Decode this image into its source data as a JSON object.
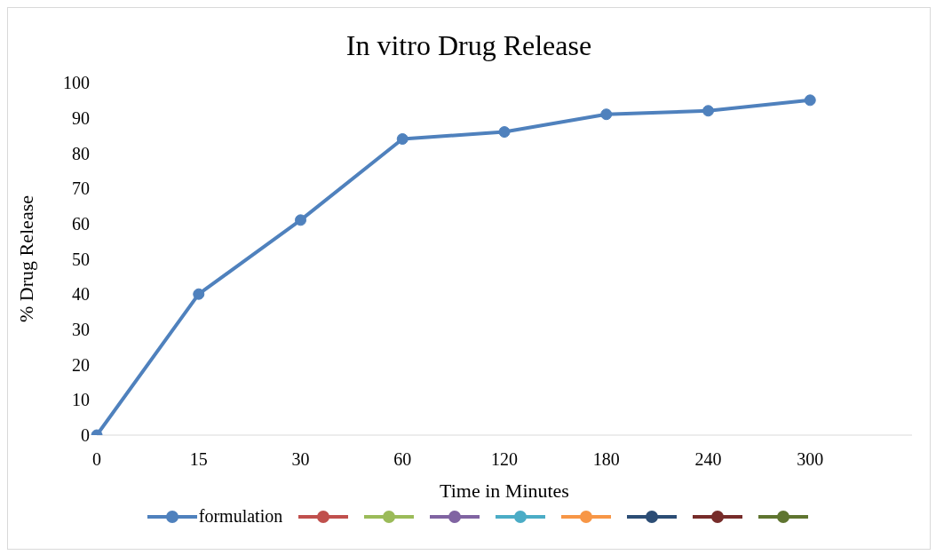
{
  "chart_data": {
    "type": "line",
    "title": "In vitro Drug Release",
    "xlabel": "Time in Minutes",
    "ylabel": "% Drug Release",
    "categories": [
      "0",
      "15",
      "30",
      "60",
      "120",
      "180",
      "240",
      "300",
      null
    ],
    "series": [
      {
        "name": "formulation",
        "color": "#4f81bd",
        "values": [
          0,
          40,
          61,
          84,
          86,
          91,
          92,
          95,
          null
        ]
      },
      {
        "color": "#c0504d",
        "values": [
          null,
          null,
          null,
          null,
          null,
          null,
          null,
          null,
          null
        ]
      },
      {
        "color": "#9bbb59",
        "values": [
          null,
          null,
          null,
          null,
          null,
          null,
          null,
          null,
          null
        ]
      },
      {
        "color": "#8064a2",
        "values": [
          null,
          null,
          null,
          null,
          null,
          null,
          null,
          null,
          null
        ]
      },
      {
        "color": "#4bacc6",
        "values": [
          null,
          null,
          null,
          null,
          null,
          null,
          null,
          null,
          null
        ]
      },
      {
        "color": "#f79646",
        "values": [
          null,
          null,
          null,
          null,
          null,
          null,
          null,
          null,
          null
        ]
      },
      {
        "color": "#2c4d75",
        "values": [
          null,
          null,
          null,
          null,
          null,
          null,
          null,
          null,
          null
        ]
      },
      {
        "color": "#772c2a",
        "values": [
          null,
          null,
          null,
          null,
          null,
          null,
          null,
          null,
          null
        ]
      },
      {
        "color": "#5f7530",
        "values": [
          null,
          null,
          null,
          null,
          null,
          null,
          null,
          null,
          null
        ]
      }
    ],
    "ylim": [
      0,
      100
    ],
    "yticks": [
      0,
      10,
      20,
      30,
      40,
      50,
      60,
      70,
      80,
      90,
      100
    ],
    "grid": false,
    "legend": "bottom",
    "marker": "circle",
    "line_style": "solid"
  }
}
